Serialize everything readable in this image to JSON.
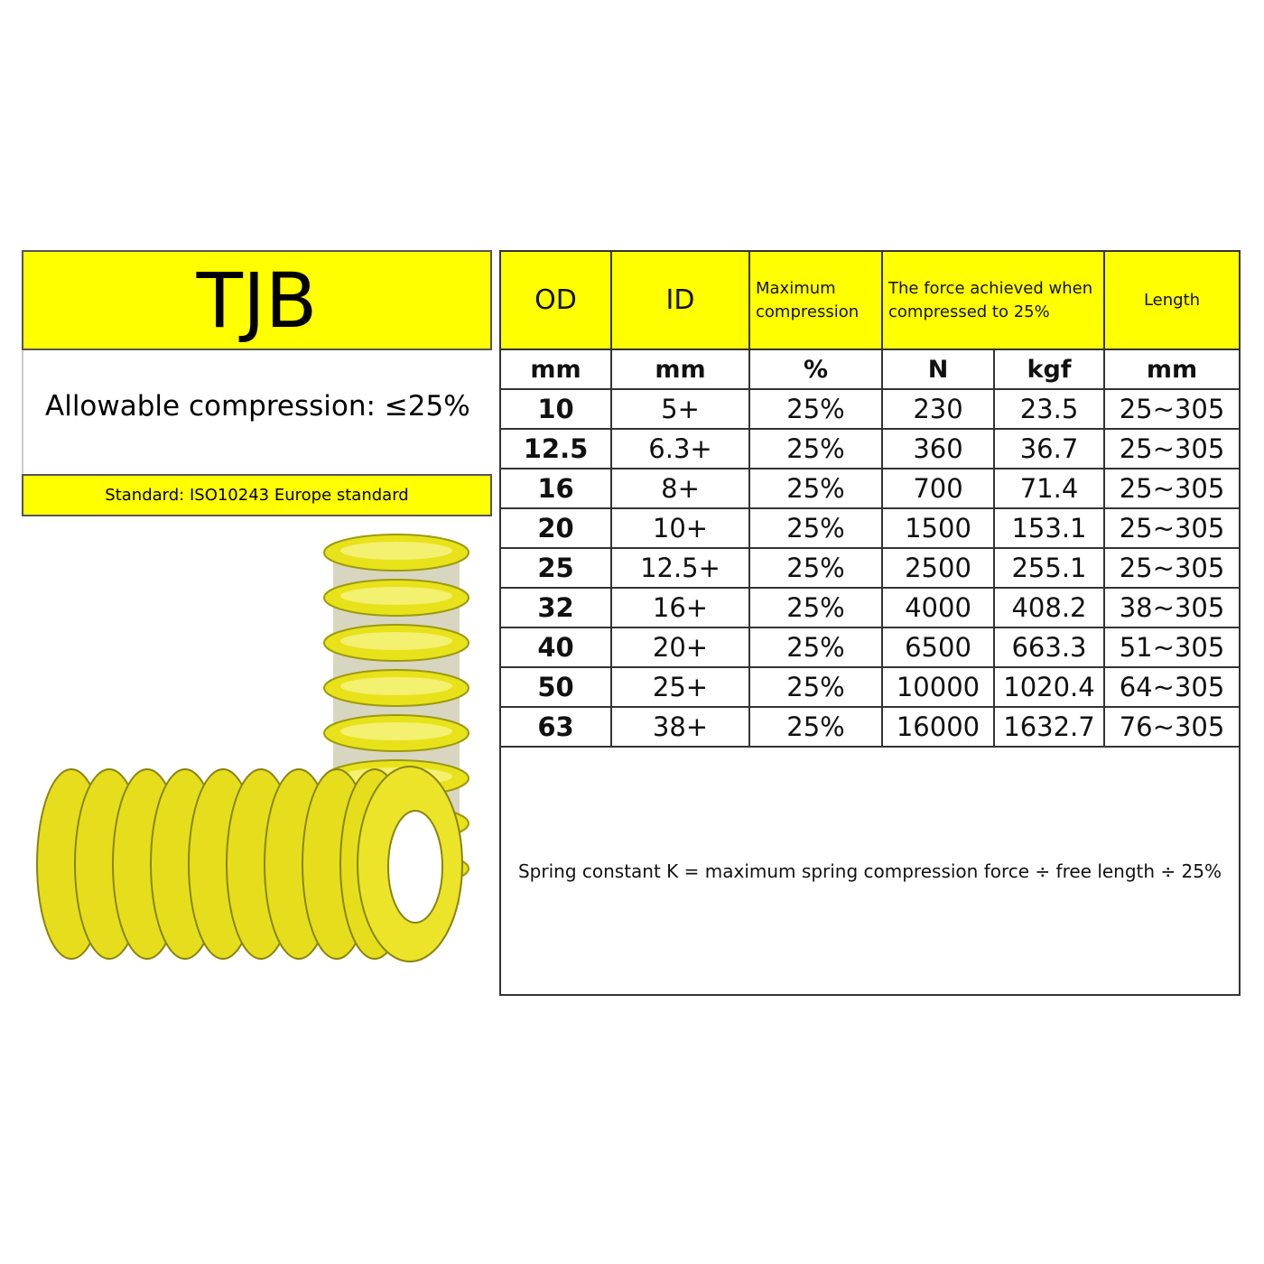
{
  "left_panel": {
    "title": "TJB",
    "allowable": "Allowable compression: ≤25%",
    "standard": "Standard: ISO10243 Europe standard"
  },
  "table": {
    "headers": [
      "OD",
      "ID",
      "Maximum compression",
      "The force achieved when compressed to 25%",
      "Length"
    ],
    "units": [
      "mm",
      "mm",
      "%",
      "N",
      "kgf",
      "mm"
    ],
    "rows": [
      [
        "10",
        "5+",
        "25%",
        "230",
        "23.5",
        "25~305"
      ],
      [
        "12.5",
        "6.3+",
        "25%",
        "360",
        "36.7",
        "25~305"
      ],
      [
        "16",
        "8+",
        "25%",
        "700",
        "71.4",
        "25~305"
      ],
      [
        "20",
        "10+",
        "25%",
        "1500",
        "153.1",
        "25~305"
      ],
      [
        "25",
        "12.5+",
        "25%",
        "2500",
        "255.1",
        "25~305"
      ],
      [
        "32",
        "16+",
        "25%",
        "4000",
        "408.2",
        "38~305"
      ],
      [
        "40",
        "20+",
        "25%",
        "6500",
        "663.3",
        "51~305"
      ],
      [
        "50",
        "25+",
        "25%",
        "10000",
        "1020.4",
        "64~305"
      ],
      [
        "63",
        "38+",
        "25%",
        "16000",
        "1632.7",
        "76~305"
      ]
    ],
    "note": "Spring constant K = maximum spring compression force ÷ free length ÷ 25%"
  }
}
